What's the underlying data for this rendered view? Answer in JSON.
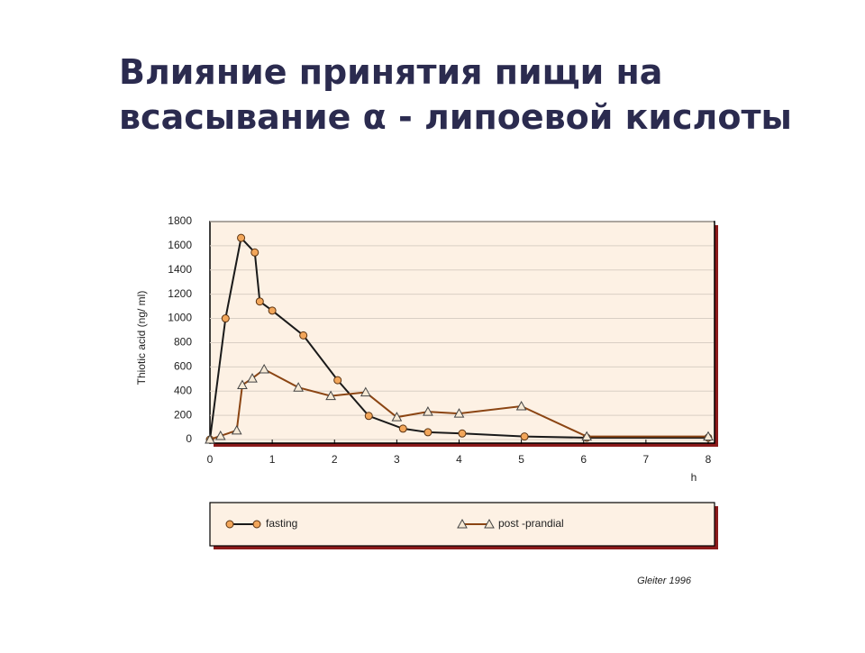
{
  "title": [
    "Влияние принятия пищи на",
    "всасывание  α - липоевой  кислоты"
  ],
  "source": "Gleiter 1996",
  "chart_data": {
    "type": "line",
    "x_label": "h",
    "y_label": "Thiotic acid (ng/ ml)",
    "xlim": [
      0,
      8
    ],
    "xticks": [
      0,
      1,
      2,
      3,
      4,
      5,
      6,
      7,
      8
    ],
    "ylim": [
      0,
      1800
    ],
    "yticks": [
      0,
      200,
      400,
      600,
      800,
      1000,
      1200,
      1400,
      1600,
      1800
    ],
    "grid": true,
    "series": [
      {
        "name": "fasting",
        "color": "#1a1a1a",
        "marker": "circle",
        "marker_color": "#f2a65a",
        "x": [
          0,
          0.25,
          0.5,
          0.72,
          0.8,
          1,
          1.5,
          2.05,
          2.55,
          3.1,
          3.5,
          4.05,
          5.05,
          6.05,
          8
        ],
        "values": [
          0,
          1000,
          1665,
          1545,
          1140,
          1065,
          860,
          490,
          195,
          90,
          60,
          50,
          25,
          15,
          15
        ]
      },
      {
        "name": "post -prandial",
        "color": "#8b4513",
        "marker": "triangle",
        "marker_color": "#f7ead6",
        "x": [
          0,
          0.17,
          0.43,
          0.52,
          0.68,
          0.87,
          1.42,
          1.94,
          2.5,
          3,
          3.5,
          4,
          5,
          6.05,
          8
        ],
        "values": [
          0,
          30,
          75,
          450,
          505,
          580,
          430,
          360,
          390,
          185,
          230,
          215,
          275,
          25,
          25
        ]
      }
    ]
  }
}
